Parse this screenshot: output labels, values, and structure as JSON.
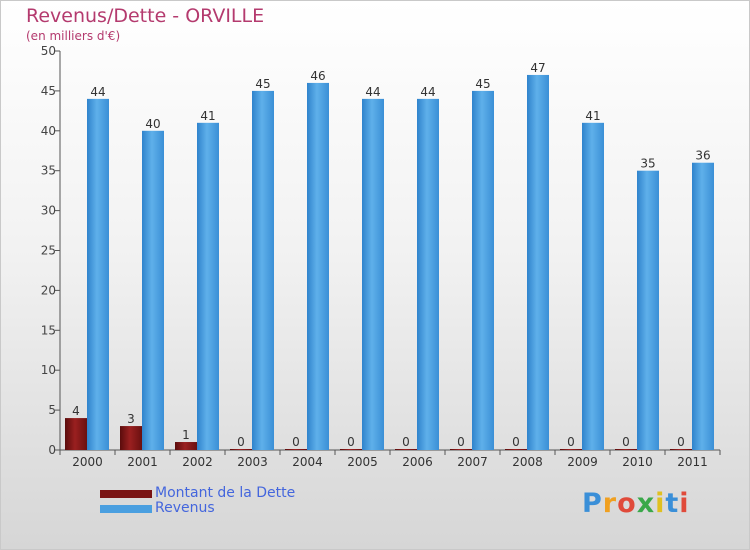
{
  "header": {
    "title": "Revenus/Dette - ORVILLE",
    "subtitle": "(en milliers d'€)"
  },
  "legend": {
    "items": [
      {
        "label": "Montant de la Dette",
        "color": "#7a1414"
      },
      {
        "label": "Revenus",
        "color": "#4a9fe0"
      }
    ]
  },
  "logo": {
    "text": "Proxiti",
    "letter_colors": [
      "#3a8fd8",
      "#f0a020",
      "#e04a3a",
      "#3aa84a",
      "#e0c020",
      "#3a8fd8",
      "#e04a3a"
    ]
  },
  "chart_data": {
    "type": "bar",
    "title": "Revenus/Dette - ORVILLE",
    "subtitle": "(en milliers d'€)",
    "categories": [
      "2000",
      "2001",
      "2002",
      "2003",
      "2004",
      "2005",
      "2006",
      "2007",
      "2008",
      "2009",
      "2010",
      "2011"
    ],
    "series": [
      {
        "name": "Montant de la Dette",
        "color": "#7a1414",
        "values": [
          4,
          3,
          1,
          0,
          0,
          0,
          0,
          0,
          0,
          0,
          0,
          0
        ]
      },
      {
        "name": "Revenus",
        "color": "#4a9fe0",
        "values": [
          44,
          40,
          41,
          45,
          46,
          44,
          44,
          45,
          47,
          41,
          35,
          36
        ]
      }
    ],
    "yticks": [
      0,
      5,
      10,
      15,
      20,
      25,
      30,
      35,
      40,
      45,
      50
    ],
    "ylim": [
      0,
      50
    ],
    "grid": false,
    "legend_position": "bottom-left"
  }
}
